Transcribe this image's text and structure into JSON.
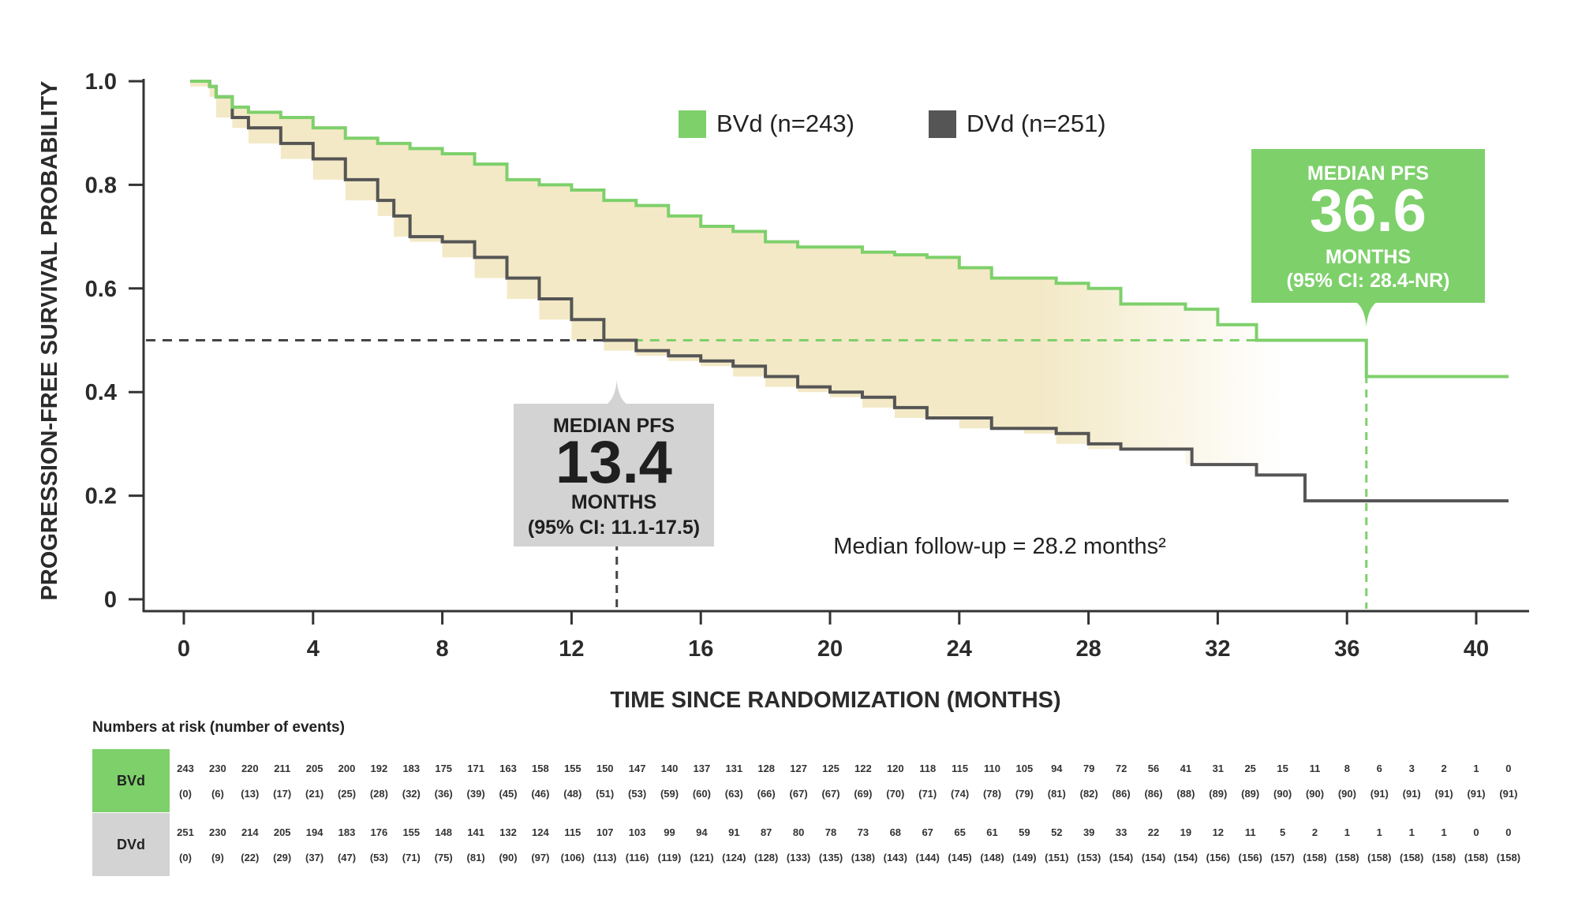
{
  "chart_data": {
    "type": "line",
    "ylabel": "PROGRESSION-FREE SURVIVAL PROBABILITY",
    "xlabel": "TIME SINCE RANDOMIZATION (MONTHS)",
    "xlim": [
      0,
      41
    ],
    "ylim": [
      0,
      1.0
    ],
    "x_ticks": [
      0,
      4,
      8,
      12,
      16,
      20,
      24,
      28,
      32,
      36,
      40
    ],
    "y_ticks": [
      {
        "value": 0,
        "label": "0"
      },
      {
        "value": 0.2,
        "label": "0.2"
      },
      {
        "value": 0.4,
        "label": "0.4"
      },
      {
        "value": 0.6,
        "label": "0.6"
      },
      {
        "value": 0.8,
        "label": "0.8"
      },
      {
        "value": 1.0,
        "label": "1.0"
      }
    ],
    "legend": "top-center",
    "series": [
      {
        "name": "BVd (n=243)",
        "color": "#7ed06b",
        "points": [
          [
            0.2,
            1.0
          ],
          [
            0.8,
            0.99
          ],
          [
            1.0,
            0.97
          ],
          [
            1.5,
            0.95
          ],
          [
            2.0,
            0.94
          ],
          [
            3.0,
            0.93
          ],
          [
            4.0,
            0.91
          ],
          [
            5.0,
            0.89
          ],
          [
            6.0,
            0.88
          ],
          [
            7.0,
            0.87
          ],
          [
            8.0,
            0.86
          ],
          [
            9.0,
            0.84
          ],
          [
            10.0,
            0.81
          ],
          [
            11.0,
            0.8
          ],
          [
            12.0,
            0.79
          ],
          [
            13.0,
            0.77
          ],
          [
            14.0,
            0.76
          ],
          [
            15.0,
            0.74
          ],
          [
            16.0,
            0.72
          ],
          [
            17.0,
            0.71
          ],
          [
            18.0,
            0.69
          ],
          [
            19.0,
            0.68
          ],
          [
            20.0,
            0.68
          ],
          [
            21.0,
            0.67
          ],
          [
            22.0,
            0.665
          ],
          [
            23.0,
            0.66
          ],
          [
            24.0,
            0.64
          ],
          [
            25.0,
            0.62
          ],
          [
            26.0,
            0.62
          ],
          [
            27.0,
            0.61
          ],
          [
            28.0,
            0.6
          ],
          [
            29.0,
            0.57
          ],
          [
            30.0,
            0.57
          ],
          [
            31.0,
            0.56
          ],
          [
            32.0,
            0.53
          ],
          [
            33.0,
            0.53
          ],
          [
            33.2,
            0.5
          ],
          [
            36.6,
            0.5
          ],
          [
            36.6,
            0.43
          ],
          [
            41.0,
            0.43
          ]
        ]
      },
      {
        "name": "DVd (n=251)",
        "color": "#555555",
        "points": [
          [
            0.2,
            1.0
          ],
          [
            0.8,
            0.99
          ],
          [
            1.0,
            0.97
          ],
          [
            1.5,
            0.93
          ],
          [
            2.0,
            0.91
          ],
          [
            3.0,
            0.88
          ],
          [
            4.0,
            0.85
          ],
          [
            5.0,
            0.81
          ],
          [
            6.0,
            0.77
          ],
          [
            6.5,
            0.74
          ],
          [
            7.0,
            0.7
          ],
          [
            8.0,
            0.69
          ],
          [
            9.0,
            0.66
          ],
          [
            10.0,
            0.62
          ],
          [
            11.0,
            0.58
          ],
          [
            12.0,
            0.54
          ],
          [
            13.0,
            0.5
          ],
          [
            14.0,
            0.48
          ],
          [
            15.0,
            0.47
          ],
          [
            16.0,
            0.46
          ],
          [
            17.0,
            0.45
          ],
          [
            18.0,
            0.43
          ],
          [
            19.0,
            0.41
          ],
          [
            20.0,
            0.4
          ],
          [
            21.0,
            0.39
          ],
          [
            22.0,
            0.37
          ],
          [
            23.0,
            0.35
          ],
          [
            24.0,
            0.35
          ],
          [
            25.0,
            0.33
          ],
          [
            26.0,
            0.33
          ],
          [
            27.0,
            0.32
          ],
          [
            28.0,
            0.3
          ],
          [
            29.0,
            0.29
          ],
          [
            31.0,
            0.29
          ],
          [
            31.2,
            0.26
          ],
          [
            33.0,
            0.26
          ],
          [
            33.2,
            0.24
          ],
          [
            34.7,
            0.24
          ],
          [
            34.7,
            0.19
          ],
          [
            41.0,
            0.19
          ]
        ]
      }
    ],
    "median_line_y": 0.5,
    "annotations": {
      "dvd_box": {
        "title": "MEDIAN PFS",
        "value": "13.4",
        "unit": "MONTHS",
        "ci": "(95% CI: 11.1-17.5)",
        "x": 13.4
      },
      "bvd_box": {
        "title": "MEDIAN PFS",
        "value": "36.6",
        "unit": "MONTHS",
        "ci": "(95% CI: 28.4-NR)",
        "x": 36.6
      },
      "followup": "Median follow-up = 28.2 months²"
    }
  },
  "risk_table": {
    "title": "Numbers at risk (number of events)",
    "rows": [
      {
        "label": "BVd",
        "color": "#7ed06b",
        "at_risk": [
          "243",
          "230",
          "220",
          "211",
          "205",
          "200",
          "192",
          "183",
          "175",
          "171",
          "163",
          "158",
          "155",
          "150",
          "147",
          "140",
          "137",
          "131",
          "128",
          "127",
          "125",
          "122",
          "120",
          "118",
          "115",
          "110",
          "105",
          "94",
          "79",
          "72",
          "56",
          "41",
          "31",
          "25",
          "15",
          "11",
          "8",
          "6",
          "3",
          "2",
          "1",
          "0"
        ],
        "events": [
          "(0)",
          "(6)",
          "(13)",
          "(17)",
          "(21)",
          "(25)",
          "(28)",
          "(32)",
          "(36)",
          "(39)",
          "(45)",
          "(46)",
          "(48)",
          "(51)",
          "(53)",
          "(59)",
          "(60)",
          "(63)",
          "(66)",
          "(67)",
          "(67)",
          "(69)",
          "(70)",
          "(71)",
          "(74)",
          "(78)",
          "(79)",
          "(81)",
          "(82)",
          "(86)",
          "(86)",
          "(88)",
          "(89)",
          "(89)",
          "(90)",
          "(90)",
          "(90)",
          "(91)",
          "(91)",
          "(91)",
          "(91)",
          "(91)"
        ]
      },
      {
        "label": "DVd",
        "color": "#d3d3d3",
        "at_risk": [
          "251",
          "230",
          "214",
          "205",
          "194",
          "183",
          "176",
          "155",
          "148",
          "141",
          "132",
          "124",
          "115",
          "107",
          "103",
          "99",
          "94",
          "91",
          "87",
          "80",
          "78",
          "73",
          "68",
          "67",
          "65",
          "61",
          "59",
          "52",
          "39",
          "33",
          "22",
          "19",
          "12",
          "11",
          "5",
          "2",
          "1",
          "1",
          "1",
          "1",
          "0",
          "0"
        ],
        "events": [
          "(0)",
          "(9)",
          "(22)",
          "(29)",
          "(37)",
          "(47)",
          "(53)",
          "(71)",
          "(75)",
          "(81)",
          "(90)",
          "(97)",
          "(106)",
          "(113)",
          "(116)",
          "(119)",
          "(121)",
          "(124)",
          "(128)",
          "(133)",
          "(135)",
          "(138)",
          "(143)",
          "(144)",
          "(145)",
          "(148)",
          "(149)",
          "(151)",
          "(153)",
          "(154)",
          "(154)",
          "(154)",
          "(156)",
          "(156)",
          "(157)",
          "(158)",
          "(158)",
          "(158)",
          "(158)",
          "(158)",
          "(158)",
          "(158)"
        ]
      }
    ]
  }
}
